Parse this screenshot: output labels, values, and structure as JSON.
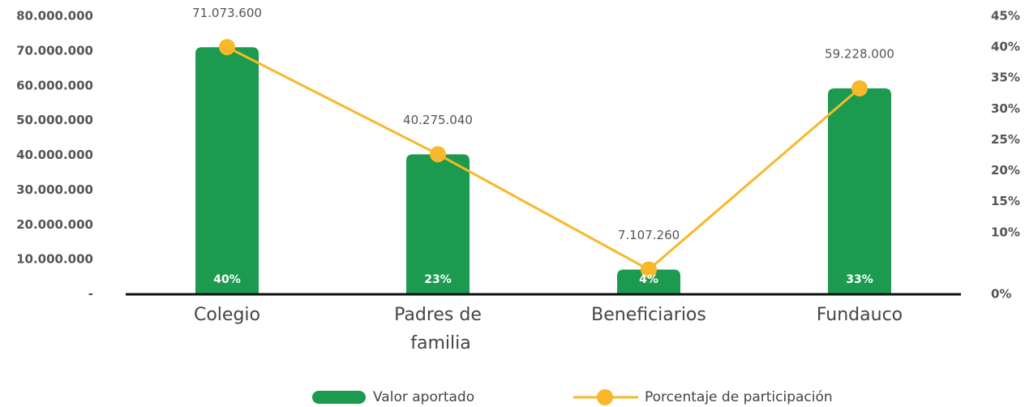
{
  "chart_data": {
    "type": "bar-line",
    "categories": [
      "Colegio",
      "Padres de familia",
      "Beneficiarios",
      "Fundauco"
    ],
    "series": [
      {
        "name": "Valor aportado",
        "type": "bar",
        "color": "#1b9a50",
        "values": [
          71073600,
          40275040,
          7107260,
          59228000
        ],
        "value_labels": [
          "71.073.600",
          "40.275.040",
          "7.107.260",
          "59.228.000"
        ]
      },
      {
        "name": "Porcentaje de participación",
        "type": "line",
        "axis": "y2",
        "color": "#f8b829",
        "values": [
          40,
          22.67,
          4,
          33.33
        ],
        "value_labels": [
          "40%",
          "23%",
          "4%",
          "33%"
        ]
      }
    ],
    "ylim": [
      0,
      80000000
    ],
    "yticks": [
      {
        "value": 0,
        "label": "-"
      },
      {
        "value": 10000000,
        "label": "10.000.000"
      },
      {
        "value": 20000000,
        "label": "20.000.000"
      },
      {
        "value": 30000000,
        "label": "30.000.000"
      },
      {
        "value": 40000000,
        "label": "40.000.000"
      },
      {
        "value": 50000000,
        "label": "50.000.000"
      },
      {
        "value": 60000000,
        "label": "60.000.000"
      },
      {
        "value": 70000000,
        "label": "70.000.000"
      },
      {
        "value": 80000000,
        "label": "80.000.000"
      }
    ],
    "y2lim": [
      0,
      45
    ],
    "y2ticks": [
      {
        "value": 0,
        "label": "0%"
      },
      {
        "value": 10,
        "label": "10%"
      },
      {
        "value": 15,
        "label": "15%"
      },
      {
        "value": 20,
        "label": "20%"
      },
      {
        "value": 25,
        "label": "25%"
      },
      {
        "value": 30,
        "label": "30%"
      },
      {
        "value": 35,
        "label": "35%"
      },
      {
        "value": 40,
        "label": "40%"
      },
      {
        "value": 45,
        "label": "45%"
      }
    ],
    "legend": "bottom"
  }
}
